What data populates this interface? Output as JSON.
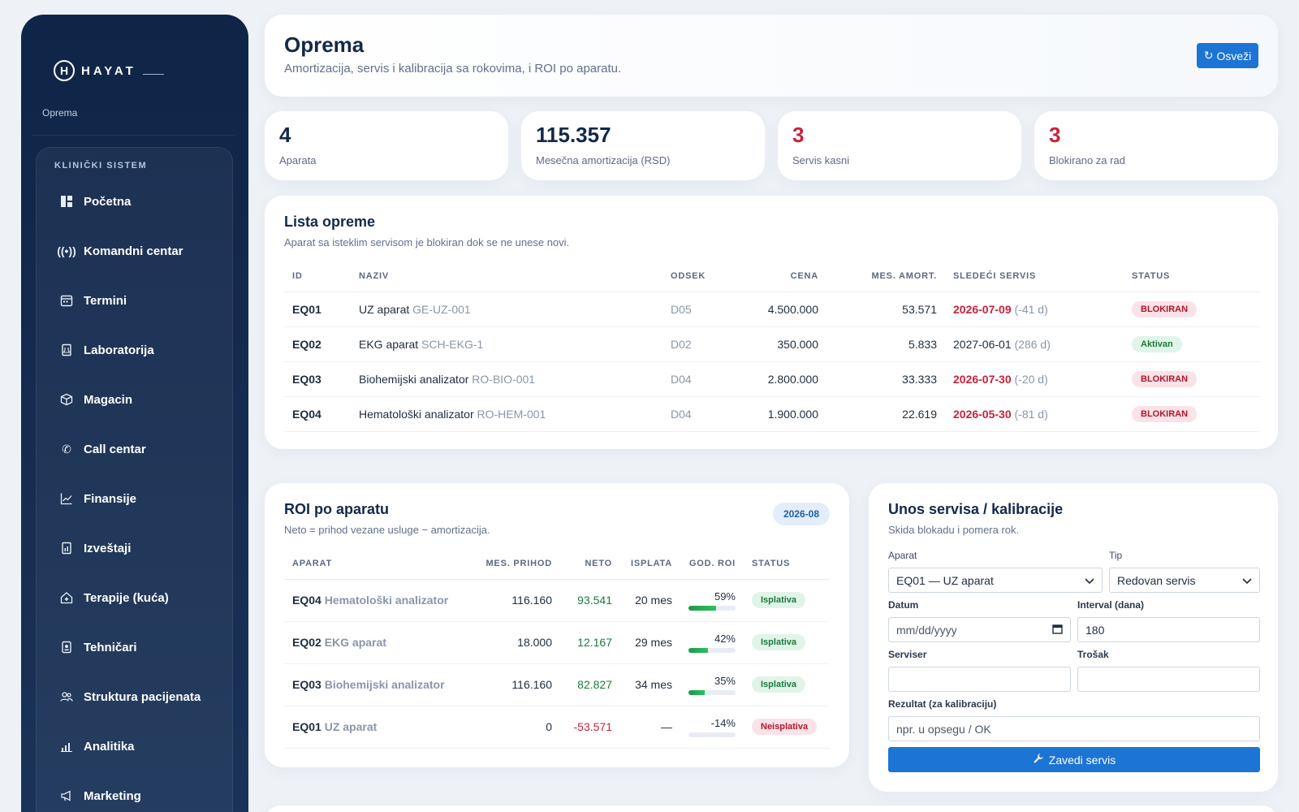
{
  "brand": {
    "logo_mark": "H",
    "name": "HAYAT"
  },
  "breadcrumb": "Oprema",
  "sidebar": {
    "section": "KLINIČKI SISTEM",
    "items": [
      {
        "label": "Početna",
        "icon": "dashboard-icon"
      },
      {
        "label": "Komandni centar",
        "icon": "broadcast-icon"
      },
      {
        "label": "Termini",
        "icon": "calendar-icon"
      },
      {
        "label": "Laboratorija",
        "icon": "lab-report-icon"
      },
      {
        "label": "Magacin",
        "icon": "box-icon"
      },
      {
        "label": "Call centar",
        "icon": "phone-icon"
      },
      {
        "label": "Finansije",
        "icon": "chart-line-icon"
      },
      {
        "label": "Izveštaji",
        "icon": "report-icon"
      },
      {
        "label": "Terapije (kuća)",
        "icon": "house-medical-icon"
      },
      {
        "label": "Tehničari",
        "icon": "id-badge-icon"
      },
      {
        "label": "Struktura pacijenata",
        "icon": "users-icon"
      },
      {
        "label": "Analitika",
        "icon": "bar-chart-icon"
      },
      {
        "label": "Marketing",
        "icon": "megaphone-icon"
      }
    ]
  },
  "header": {
    "title": "Oprema",
    "subtitle": "Amortizacija, servis i kalibracija sa rokovima, i ROI po aparatu.",
    "refresh_label": "Osveži"
  },
  "stats": [
    {
      "value": "4",
      "label": "Aparata",
      "alert": false
    },
    {
      "value": "115.357",
      "label": "Mesečna amortizacija (RSD)",
      "alert": false
    },
    {
      "value": "3",
      "label": "Servis kasni",
      "alert": true
    },
    {
      "value": "3",
      "label": "Blokirano za rad",
      "alert": true
    }
  ],
  "equipment": {
    "title": "Lista opreme",
    "subtitle": "Aparat sa isteklim servisom je blokiran dok se ne unese novi.",
    "columns": [
      "ID",
      "NAZIV",
      "ODSEK",
      "CENA",
      "MES. AMORT.",
      "SLEDEĆI SERVIS",
      "STATUS"
    ],
    "rows": [
      {
        "id": "EQ01",
        "name": "UZ aparat",
        "code": "GE-UZ-001",
        "dept": "D05",
        "price": "4.500.000",
        "amort": "53.571",
        "next_service": "2026-07-09",
        "days": "(-41 d)",
        "overdue": true,
        "status": "BLOKIRAN"
      },
      {
        "id": "EQ02",
        "name": "EKG aparat",
        "code": "SCH-EKG-1",
        "dept": "D02",
        "price": "350.000",
        "amort": "5.833",
        "next_service": "2027-06-01",
        "days": "(286 d)",
        "overdue": false,
        "status": "Aktivan"
      },
      {
        "id": "EQ03",
        "name": "Biohemijski analizator",
        "code": "RO-BIO-001",
        "dept": "D04",
        "price": "2.800.000",
        "amort": "33.333",
        "next_service": "2026-07-30",
        "days": "(-20 d)",
        "overdue": true,
        "status": "BLOKIRAN"
      },
      {
        "id": "EQ04",
        "name": "Hematološki analizator",
        "code": "RO-HEM-001",
        "dept": "D04",
        "price": "1.900.000",
        "amort": "22.619",
        "next_service": "2026-05-30",
        "days": "(-81 d)",
        "overdue": true,
        "status": "BLOKIRAN"
      }
    ]
  },
  "roi": {
    "title": "ROI po aparatu",
    "subtitle": "Neto = prihod vezane usluge − amortizacija.",
    "period": "2026-08",
    "columns": [
      "APARAT",
      "MES. PRIHOD",
      "NETO",
      "ISPLATA",
      "GOD. ROI",
      "STATUS"
    ],
    "rows": [
      {
        "id": "EQ04",
        "name": "Hematološki analizator",
        "revenue": "116.160",
        "net": "93.541",
        "net_positive": true,
        "payback": "20 mes",
        "roi": "59%",
        "roi_fraction": 0.59,
        "status": "Isplativa",
        "profitable": true
      },
      {
        "id": "EQ02",
        "name": "EKG aparat",
        "revenue": "18.000",
        "net": "12.167",
        "net_positive": true,
        "payback": "29 mes",
        "roi": "42%",
        "roi_fraction": 0.42,
        "status": "Isplativa",
        "profitable": true
      },
      {
        "id": "EQ03",
        "name": "Biohemijski analizator",
        "revenue": "116.160",
        "net": "82.827",
        "net_positive": true,
        "payback": "34 mes",
        "roi": "35%",
        "roi_fraction": 0.35,
        "status": "Isplativa",
        "profitable": true
      },
      {
        "id": "EQ01",
        "name": "UZ aparat",
        "revenue": "0",
        "net": "-53.571",
        "net_positive": false,
        "payback": "—",
        "roi": "-14%",
        "roi_fraction": 0,
        "status": "Neisplativa",
        "profitable": false
      }
    ]
  },
  "service_form": {
    "title": "Unos servisa / kalibracije",
    "subtitle": "Skida blokadu i pomera rok.",
    "device_label": "Aparat",
    "device_value": "EQ01 — UZ aparat",
    "type_label": "Tip",
    "type_value": "Redovan servis",
    "date_label": "Datum",
    "date_placeholder": "mm/dd/yyyy",
    "interval_label": "Interval (dana)",
    "interval_value": "180",
    "servicer_label": "Serviser",
    "cost_label": "Trošak",
    "result_label": "Rezultat (za kalibraciju)",
    "result_placeholder": "npr. u opsegu / OK",
    "submit_label": "Zavedi servis"
  },
  "colors": {
    "accent": "#1c74d4",
    "sidebar": "#0f2547",
    "danger": "#c8233a",
    "success": "#1b7a3b"
  }
}
